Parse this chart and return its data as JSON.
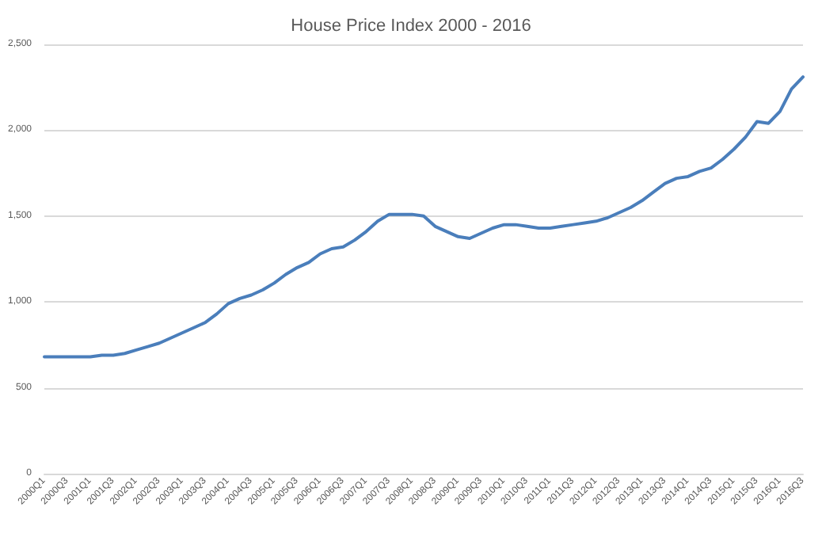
{
  "chart_data": {
    "type": "line",
    "title": "House Price Index 2000 - 2016",
    "categories": [
      "2000Q1",
      null,
      "2000Q3",
      null,
      "2001Q1",
      null,
      "2001Q3",
      null,
      "2002Q1",
      null,
      "2002Q3",
      null,
      "2003Q1",
      null,
      "2003Q3",
      null,
      "2004Q1",
      null,
      "2004Q3",
      null,
      "2005Q1",
      null,
      "2005Q3",
      null,
      "2006Q1",
      null,
      "2006Q3",
      null,
      "2007Q1",
      null,
      "2007Q3",
      null,
      "2008Q1",
      null,
      "2008Q3",
      null,
      "2009Q1",
      null,
      "2009Q3",
      null,
      "2010Q1",
      null,
      "2010Q3",
      null,
      "2011Q1",
      null,
      "2011Q3",
      null,
      "2012Q1",
      null,
      "2012Q3",
      null,
      "2013Q1",
      null,
      "2013Q3",
      null,
      "2014Q1",
      null,
      "2014Q3",
      null,
      "2015Q1",
      null,
      "2015Q3",
      null,
      "2016Q1",
      null,
      "2016Q3"
    ],
    "series": [
      {
        "color": "#4a7ebb",
        "values": [
          680,
          680,
          680,
          680,
          680,
          690,
          690,
          700,
          720,
          740,
          760,
          790,
          820,
          850,
          880,
          930,
          990,
          1020,
          1040,
          1070,
          1110,
          1160,
          1200,
          1230,
          1280,
          1310,
          1320,
          1360,
          1410,
          1470,
          1510,
          1510,
          1510,
          1500,
          1440,
          1410,
          1380,
          1370,
          1400,
          1430,
          1450,
          1450,
          1440,
          1430,
          1430,
          1440,
          1450,
          1460,
          1470,
          1490,
          1520,
          1550,
          1590,
          1640,
          1690,
          1720,
          1730,
          1760,
          1780,
          1830,
          1890,
          1960,
          2050,
          2040,
          2110,
          2240,
          2310
        ]
      }
    ],
    "ylim": [
      0,
      2500
    ],
    "yticks": [
      0,
      500,
      {
        "value": 1000,
        "label": "1,000"
      },
      {
        "value": 1500,
        "label": "1,500"
      },
      {
        "value": 2000,
        "label": "2,000"
      },
      {
        "value": 2500,
        "label": "2,500"
      }
    ],
    "grid": "y",
    "marker": "none",
    "line_style": "solid"
  }
}
